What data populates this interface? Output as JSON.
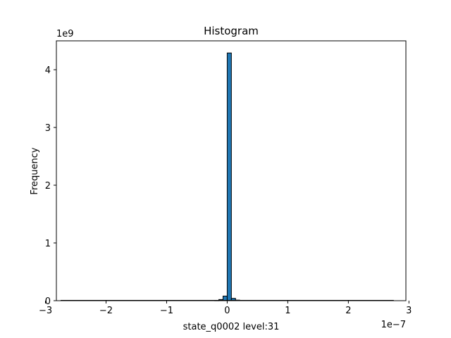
{
  "chart_data": {
    "type": "bar",
    "title": "Histogram",
    "xlabel": "state_q0002 level:31",
    "ylabel": "Frequency",
    "x_scale_label": "1e−7",
    "y_scale_label": "1e9",
    "xlim": [
      -2.82,
      2.95
    ],
    "ylim": [
      0,
      4.5
    ],
    "x_ticks": [
      -3,
      -2,
      -1,
      0,
      1,
      2,
      3
    ],
    "x_tick_labels": [
      "−3",
      "−2",
      "−1",
      "0",
      "1",
      "2",
      "3"
    ],
    "y_ticks": [
      0,
      1,
      2,
      3,
      4
    ],
    "y_tick_labels": [
      "0",
      "1",
      "2",
      "3",
      "4"
    ],
    "bin_edges_start": -2.75,
    "bin_width": 0.0688,
    "bars": [
      {
        "x0": -0.206,
        "x1": -0.138,
        "value": 0.005
      },
      {
        "x0": -0.138,
        "x1": -0.069,
        "value": 0.02
      },
      {
        "x0": -0.069,
        "x1": 0.0,
        "value": 0.08
      },
      {
        "x0": 0.0,
        "x1": 0.069,
        "value": 4.29
      },
      {
        "x0": 0.069,
        "x1": 0.138,
        "value": 0.04
      },
      {
        "x0": 0.138,
        "x1": 0.206,
        "value": 0.01
      }
    ],
    "bar_color": "#1f77b4",
    "edge_color": "#000000",
    "grid": false
  }
}
